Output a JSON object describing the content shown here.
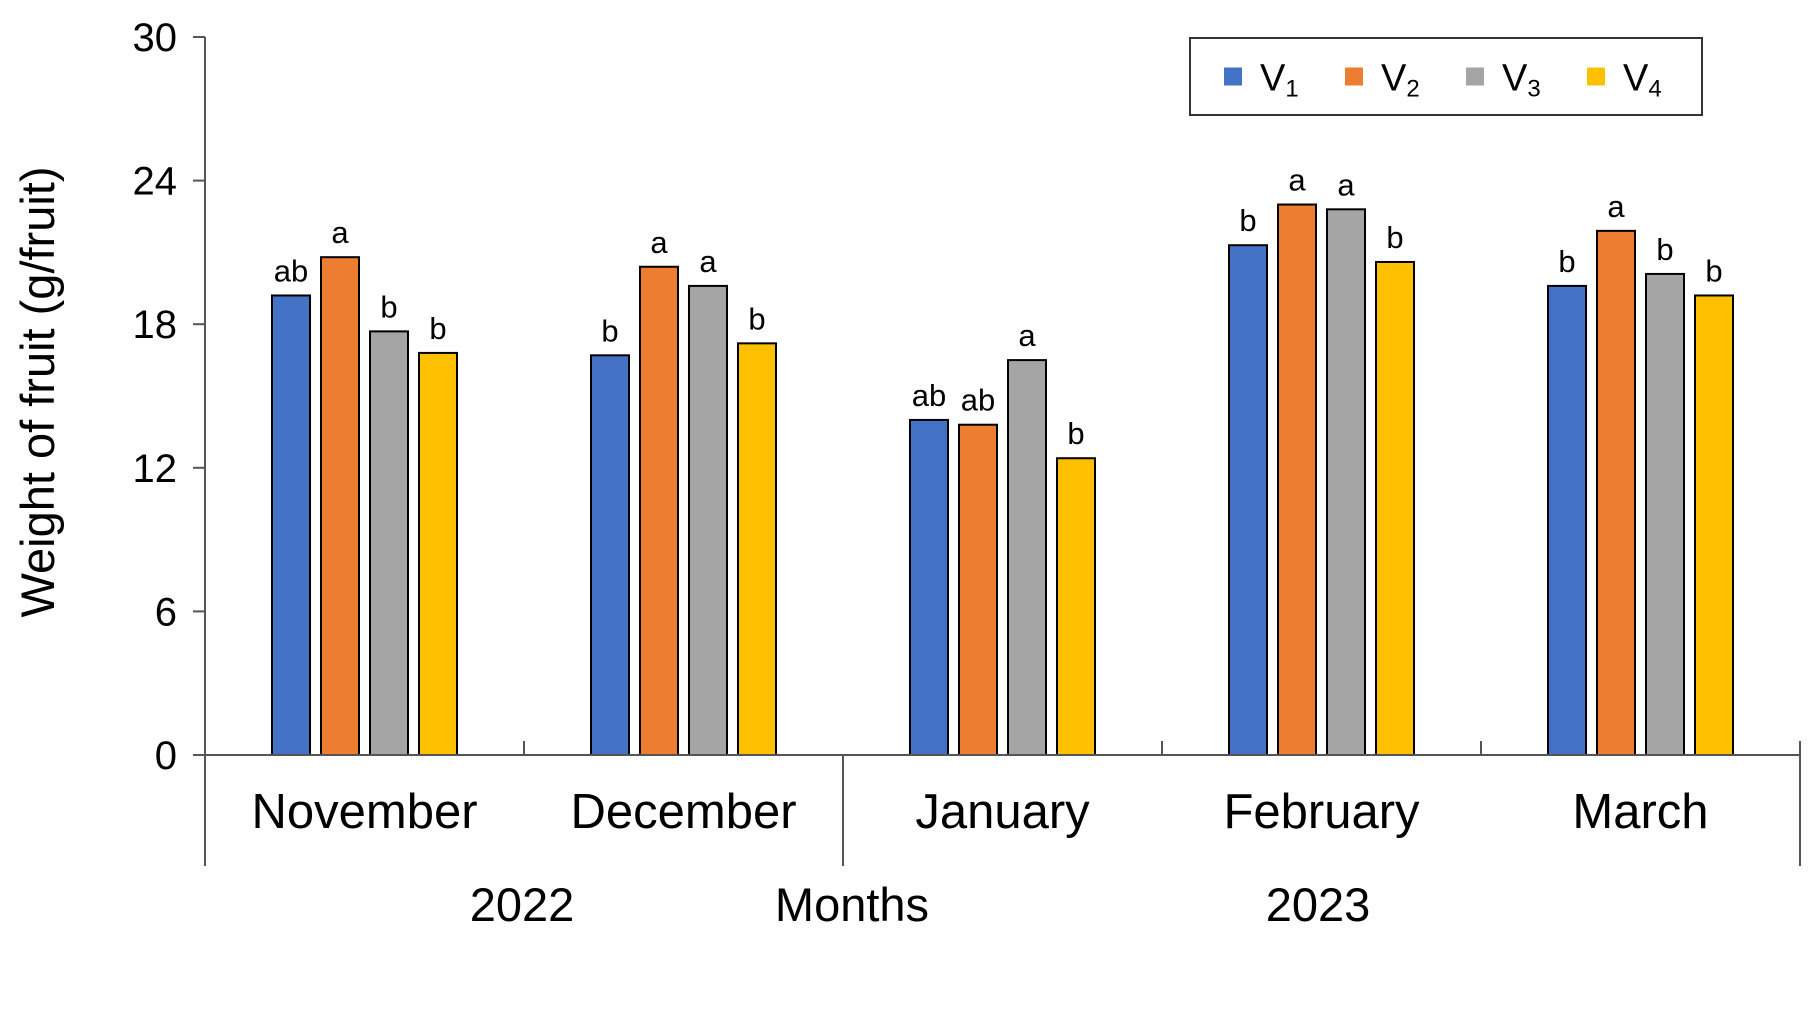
{
  "chart_data": {
    "type": "bar",
    "ylabel": "Weight of fruit (g/fruit)",
    "xlabel": "Months",
    "year_labels": [
      "2022",
      "2023"
    ],
    "categories": [
      "November",
      "December",
      "January",
      "February",
      "March"
    ],
    "ylim": [
      0,
      30
    ],
    "yticks": [
      "0",
      "6",
      "12",
      "18",
      "24",
      "30"
    ],
    "grid": false,
    "legend_placement": "top-right",
    "series": [
      {
        "name": "V",
        "subscript": "1",
        "color": "#4472C4",
        "values": [
          19.2,
          16.7,
          14.0,
          21.3,
          19.6
        ],
        "sig": [
          "ab",
          "b",
          "ab",
          "b",
          "b"
        ]
      },
      {
        "name": "V",
        "subscript": "2",
        "color": "#ED7D31",
        "values": [
          20.8,
          20.4,
          13.8,
          23.0,
          21.9
        ],
        "sig": [
          "a",
          "a",
          "ab",
          "a",
          "a"
        ]
      },
      {
        "name": "V",
        "subscript": "3",
        "color": "#A5A5A5",
        "values": [
          17.7,
          19.6,
          16.5,
          22.8,
          20.1
        ],
        "sig": [
          "b",
          "a",
          "a",
          "a",
          "b"
        ]
      },
      {
        "name": "V",
        "subscript": "4",
        "color": "#FFC000",
        "values": [
          16.8,
          17.2,
          12.4,
          20.6,
          19.2
        ],
        "sig": [
          "b",
          "b",
          "b",
          "b",
          "b"
        ]
      }
    ]
  }
}
